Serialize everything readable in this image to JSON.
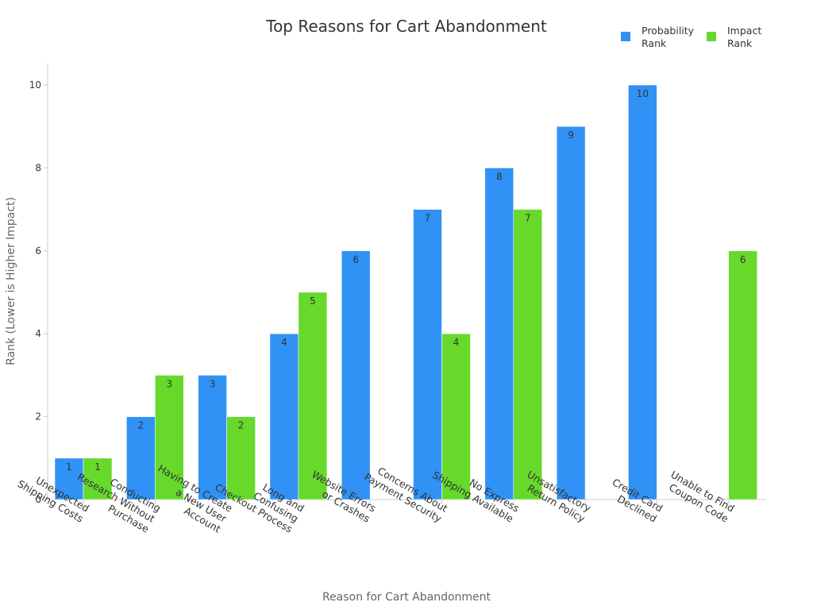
{
  "chart_data": {
    "type": "bar",
    "title": "Top Reasons for Cart Abandonment",
    "xlabel": "Reason for Cart Abandonment",
    "ylabel": "Rank (Lower is Higher Impact)",
    "ylim": [
      0,
      10.5
    ],
    "yticks": [
      0,
      2,
      4,
      6,
      8,
      10
    ],
    "grid": false,
    "legend_position": "top-right",
    "categories": [
      [
        "Unexpected",
        "Shipping Costs"
      ],
      [
        "Conducting",
        "Research Without",
        "Purchase"
      ],
      [
        "Having to Create",
        "a New User",
        "Account"
      ],
      [
        "Long and",
        "Confusing",
        "Checkout Process"
      ],
      [
        "Website Errors",
        "or Crashes"
      ],
      [
        "Concerns About",
        "Payment Security"
      ],
      [
        "No Express",
        "Shipping Available"
      ],
      [
        "Unsatisfactory",
        "Return Policy"
      ],
      [
        "Credit Card",
        "Declined"
      ],
      [
        "Unable to Find",
        "Coupon Code"
      ]
    ],
    "series": [
      {
        "name": "Probability Rank",
        "legend_lines": [
          "Probability",
          "Rank"
        ],
        "color": "#3092f5",
        "values": [
          1,
          2,
          3,
          4,
          6,
          7,
          8,
          9,
          10,
          null
        ]
      },
      {
        "name": "Impact Rank",
        "legend_lines": [
          "Impact",
          "Rank"
        ],
        "color": "#66d92b",
        "values": [
          1,
          3,
          2,
          5,
          null,
          4,
          7,
          null,
          null,
          6
        ]
      }
    ]
  }
}
